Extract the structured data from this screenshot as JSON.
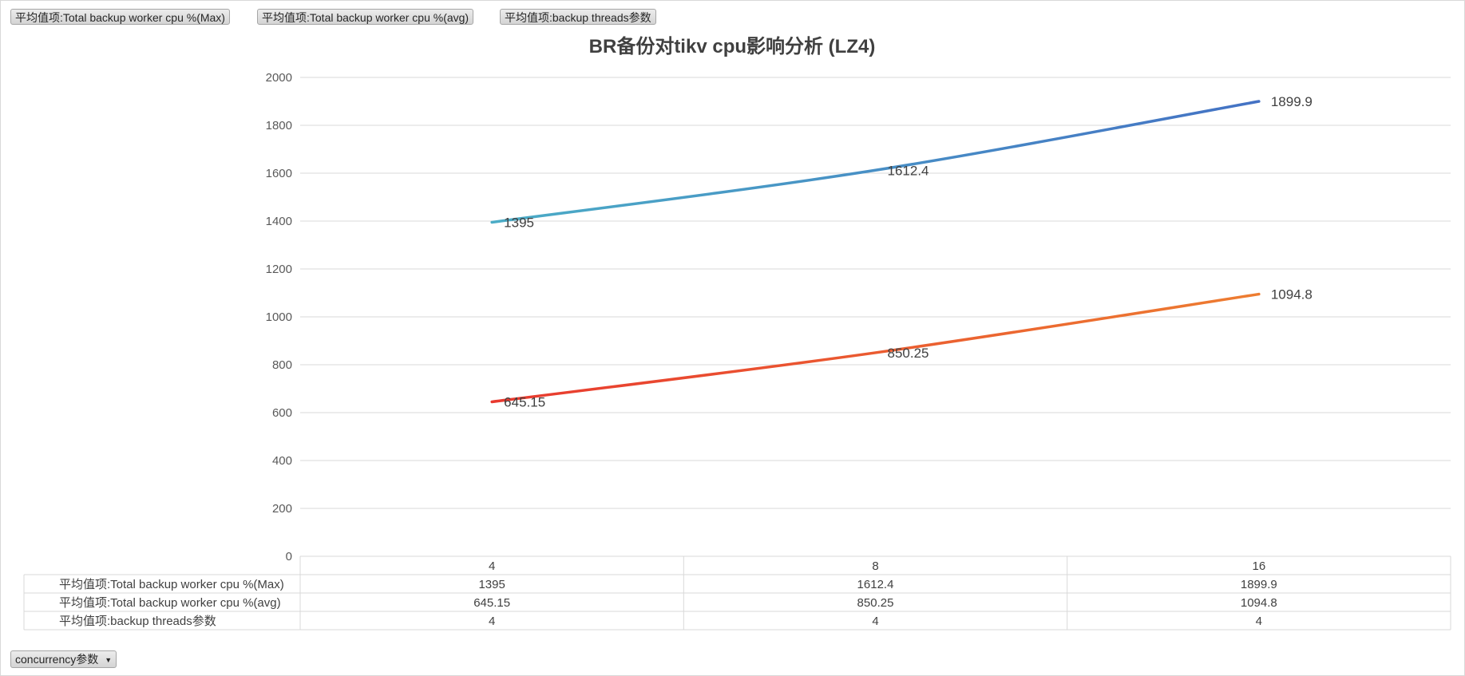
{
  "field_buttons": [
    "平均值项:Total backup worker cpu %(Max)",
    "平均值项:Total backup worker cpu %(avg)",
    "平均值项:backup threads参数"
  ],
  "axis_field_button": "concurrency参数",
  "colors": {
    "series_max": [
      "#4bacc6",
      "#4472c4"
    ],
    "series_avg": [
      "#e8392f",
      "#ed7d31"
    ],
    "series_threads": [
      "#e85c1e",
      "#f2b705"
    ],
    "grid": "#d9d9d9"
  },
  "chart_data": {
    "type": "line",
    "title": "BR备份对tikv cpu影响分析 (LZ4)",
    "categories": [
      "4",
      "8",
      "16"
    ],
    "ylim": [
      0,
      2000
    ],
    "yticks": [
      "0",
      "200",
      "400",
      "600",
      "800",
      "1000",
      "1200",
      "1400",
      "1600",
      "1800",
      "2000"
    ],
    "grid": true,
    "legend_placement": "data-table-bottom",
    "series": [
      {
        "name": "平均值项:Total backup worker cpu %(Max)",
        "values": [
          1395,
          1612.4,
          1899.9
        ],
        "labels": [
          "1395",
          "1612.4",
          "1899.9"
        ],
        "table": [
          "1395",
          "1612.4",
          "1899.9"
        ],
        "show_labels": true
      },
      {
        "name": "平均值项:Total backup worker cpu %(avg)",
        "values": [
          645.15,
          850.25,
          1094.8
        ],
        "labels": [
          "645.15",
          "850.25",
          "1094.8"
        ],
        "table": [
          "645.15",
          "850.25",
          "1094.8"
        ],
        "show_labels": true
      },
      {
        "name": "平均值项:backup threads参数",
        "values": [
          4,
          4,
          4
        ],
        "labels": [
          "4",
          "4",
          "4"
        ],
        "table": [
          "4",
          "4",
          "4"
        ],
        "show_labels": false
      }
    ]
  }
}
